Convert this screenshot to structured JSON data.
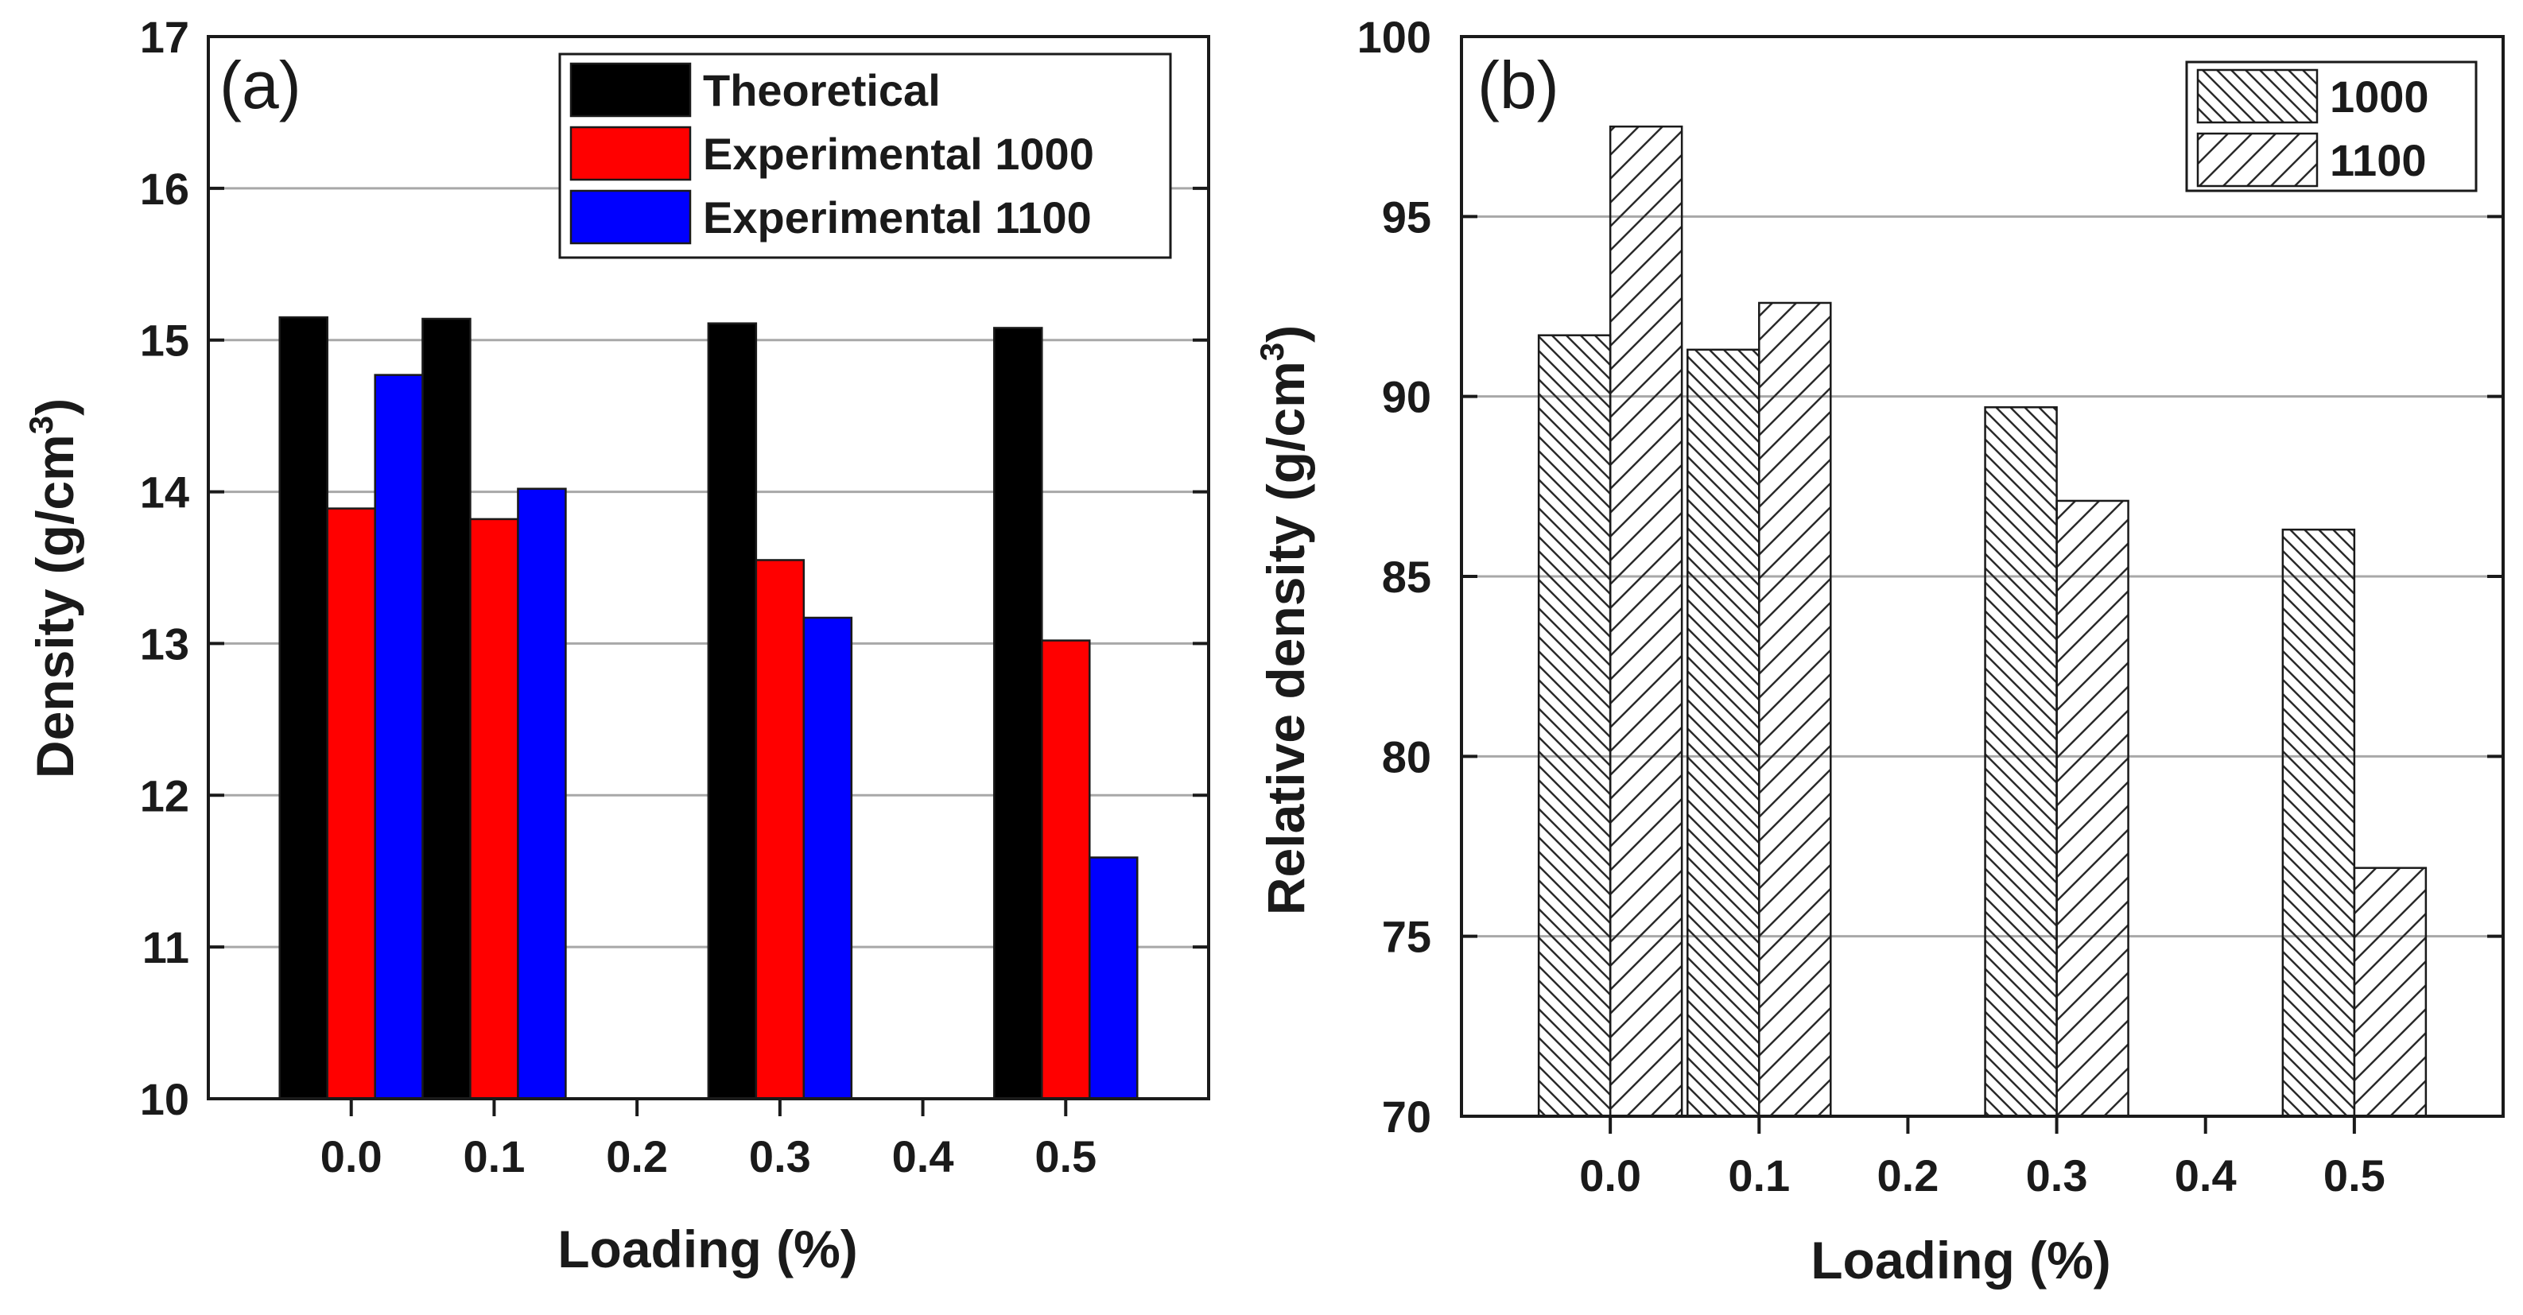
{
  "chart_data": [
    {
      "type": "bar",
      "panel_label": "(a)",
      "title": "",
      "xlabel": "Loading (%)",
      "ylabel": "Density (g/cm",
      "ylabel_superscript": "3",
      "ylabel_close": ")",
      "xlim": [
        -0.1,
        0.6
      ],
      "ylim": [
        10,
        17
      ],
      "x_ticks": [
        0.0,
        0.1,
        0.2,
        0.3,
        0.4,
        0.5
      ],
      "x_tick_labels": [
        "0.0",
        "0.1",
        "0.2",
        "0.3",
        "0.4",
        "0.5"
      ],
      "y_ticks": [
        10,
        11,
        12,
        13,
        14,
        15,
        16,
        17
      ],
      "y_tick_labels": [
        "10",
        "11",
        "12",
        "13",
        "14",
        "15",
        "16",
        "17"
      ],
      "grid": true,
      "legend_position": "top-right",
      "x": [
        0.0,
        0.1,
        0.3,
        0.5
      ],
      "series": [
        {
          "name": "Theoretical",
          "color": "#000000",
          "values": [
            15.15,
            15.14,
            15.11,
            15.08
          ]
        },
        {
          "name": "Experimental 1000",
          "color": "#ff0000",
          "values": [
            13.89,
            13.82,
            13.55,
            13.02
          ]
        },
        {
          "name": "Experimental 1100",
          "color": "#0000ff",
          "values": [
            14.77,
            14.02,
            13.17,
            11.59
          ]
        }
      ]
    },
    {
      "type": "bar",
      "panel_label": "(b)",
      "title": "",
      "xlabel": "Loading (%)",
      "ylabel": "Relative density (g/cm",
      "ylabel_superscript": "3",
      "ylabel_close": ")",
      "xlim": [
        -0.1,
        0.6
      ],
      "ylim": [
        70,
        100
      ],
      "x_ticks": [
        0.0,
        0.1,
        0.2,
        0.3,
        0.4,
        0.5
      ],
      "x_tick_labels": [
        "0.0",
        "0.1",
        "0.2",
        "0.3",
        "0.4",
        "0.5"
      ],
      "y_ticks": [
        70,
        75,
        80,
        85,
        90,
        95,
        100
      ],
      "y_tick_labels": [
        "70",
        "75",
        "80",
        "85",
        "90",
        "95",
        "100"
      ],
      "grid": true,
      "legend_position": "top-right",
      "x": [
        0.0,
        0.1,
        0.3,
        0.5
      ],
      "series": [
        {
          "name": "1000",
          "pattern": "back-hatch",
          "values": [
            91.7,
            91.3,
            89.7,
            86.3
          ]
        },
        {
          "name": "1100",
          "pattern": "forward-hatch",
          "values": [
            97.5,
            92.6,
            87.1,
            76.9
          ]
        }
      ]
    }
  ]
}
